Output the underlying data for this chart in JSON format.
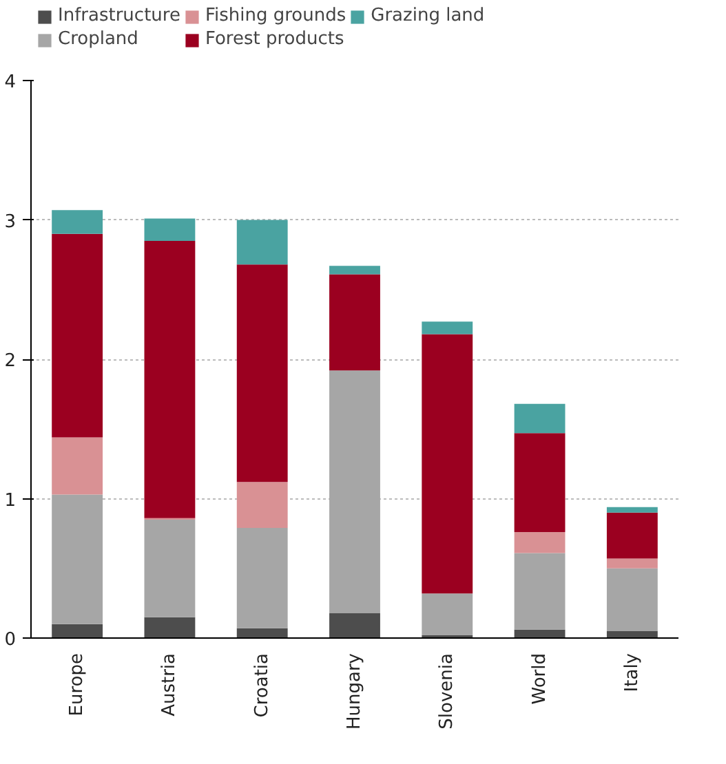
{
  "chart_data": {
    "type": "bar",
    "stacked": true,
    "categories": [
      "Europe",
      "Austria",
      "Croatia",
      "Hungary",
      "Slovenia",
      "World",
      "Italy"
    ],
    "series": [
      {
        "name": "Infrastructure",
        "color": "#4d4d4d",
        "values": [
          0.1,
          0.15,
          0.07,
          0.18,
          0.02,
          0.06,
          0.05
        ]
      },
      {
        "name": "Cropland",
        "color": "#a6a6a6",
        "values": [
          0.93,
          0.7,
          0.72,
          1.74,
          0.3,
          0.55,
          0.45
        ]
      },
      {
        "name": "Fishing grounds",
        "color": "#d99194",
        "values": [
          0.41,
          0.01,
          0.33,
          0.0,
          0.0,
          0.15,
          0.07
        ]
      },
      {
        "name": "Forest products",
        "color": "#9b0020",
        "values": [
          1.46,
          1.99,
          1.56,
          0.69,
          1.86,
          0.71,
          0.33
        ]
      },
      {
        "name": "Grazing land",
        "color": "#4aa3a1",
        "values": [
          0.17,
          0.16,
          0.32,
          0.06,
          0.09,
          0.21,
          0.04
        ]
      }
    ],
    "ylim": [
      0,
      4
    ],
    "yticks": [
      0,
      1,
      2,
      3,
      4
    ],
    "grid": "y",
    "legend": "top"
  }
}
